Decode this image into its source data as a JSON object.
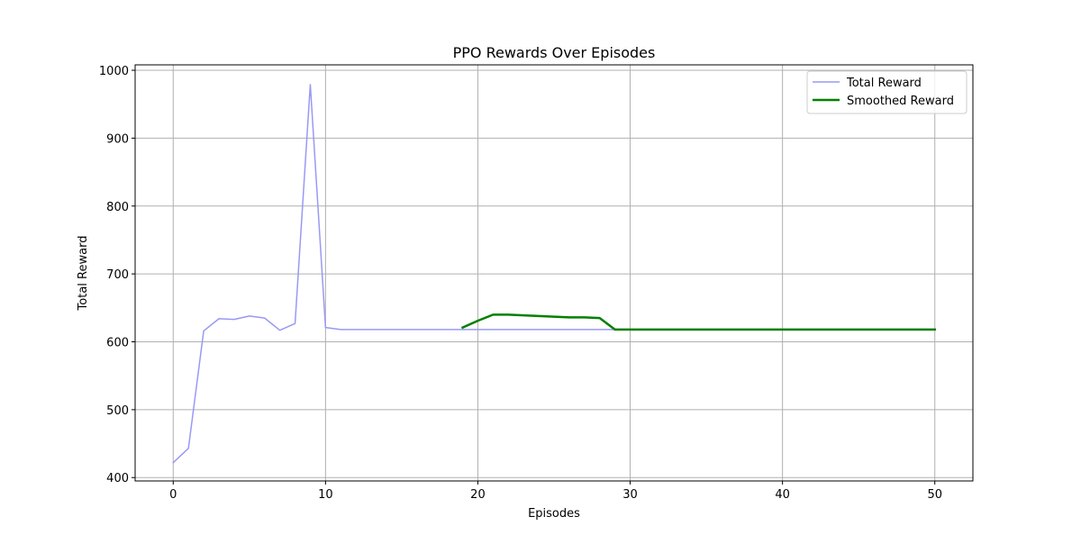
{
  "chart_data": {
    "type": "line",
    "title": "PPO Rewards Over Episodes",
    "xlabel": "Episodes",
    "ylabel": "Total Reward",
    "xlim": [
      -2.5,
      52.5
    ],
    "ylim": [
      395,
      1008
    ],
    "xticks": [
      0,
      10,
      20,
      30,
      40,
      50
    ],
    "yticks": [
      400,
      500,
      600,
      700,
      800,
      900,
      1000
    ],
    "grid": true,
    "legend_position": "top-right",
    "series": [
      {
        "name": "Total Reward",
        "color": "#9999f5",
        "line_width": 1.5,
        "points": [
          [
            0,
            422
          ],
          [
            1,
            443
          ],
          [
            2,
            616
          ],
          [
            3,
            634
          ],
          [
            4,
            633
          ],
          [
            5,
            638
          ],
          [
            6,
            635
          ],
          [
            7,
            617
          ],
          [
            8,
            627
          ],
          [
            9,
            979
          ],
          [
            10,
            621
          ],
          [
            11,
            618
          ],
          [
            12,
            618
          ],
          [
            13,
            618
          ],
          [
            14,
            618
          ],
          [
            15,
            618
          ],
          [
            16,
            618
          ],
          [
            17,
            618
          ],
          [
            18,
            618
          ],
          [
            19,
            618
          ],
          [
            20,
            618
          ],
          [
            21,
            618
          ],
          [
            22,
            618
          ],
          [
            23,
            618
          ],
          [
            24,
            618
          ],
          [
            25,
            618
          ],
          [
            26,
            618
          ],
          [
            27,
            618
          ],
          [
            28,
            618
          ],
          [
            29,
            618
          ]
        ]
      },
      {
        "name": "Smoothed Reward",
        "color": "#008000",
        "line_width": 2.5,
        "points": [
          [
            19,
            621
          ],
          [
            20,
            631
          ],
          [
            21,
            640
          ],
          [
            22,
            640
          ],
          [
            23,
            639
          ],
          [
            24,
            638
          ],
          [
            25,
            637
          ],
          [
            26,
            636
          ],
          [
            27,
            636
          ],
          [
            28,
            635
          ],
          [
            29,
            618
          ],
          [
            30,
            618
          ],
          [
            31,
            618
          ],
          [
            32,
            618
          ],
          [
            33,
            618
          ],
          [
            34,
            618
          ],
          [
            35,
            618
          ],
          [
            36,
            618
          ],
          [
            37,
            618
          ],
          [
            38,
            618
          ],
          [
            39,
            618
          ],
          [
            40,
            618
          ],
          [
            41,
            618
          ],
          [
            42,
            618
          ],
          [
            43,
            618
          ],
          [
            44,
            618
          ],
          [
            45,
            618
          ],
          [
            46,
            618
          ],
          [
            47,
            618
          ],
          [
            48,
            618
          ],
          [
            49,
            618
          ],
          [
            50,
            618
          ]
        ]
      }
    ]
  }
}
